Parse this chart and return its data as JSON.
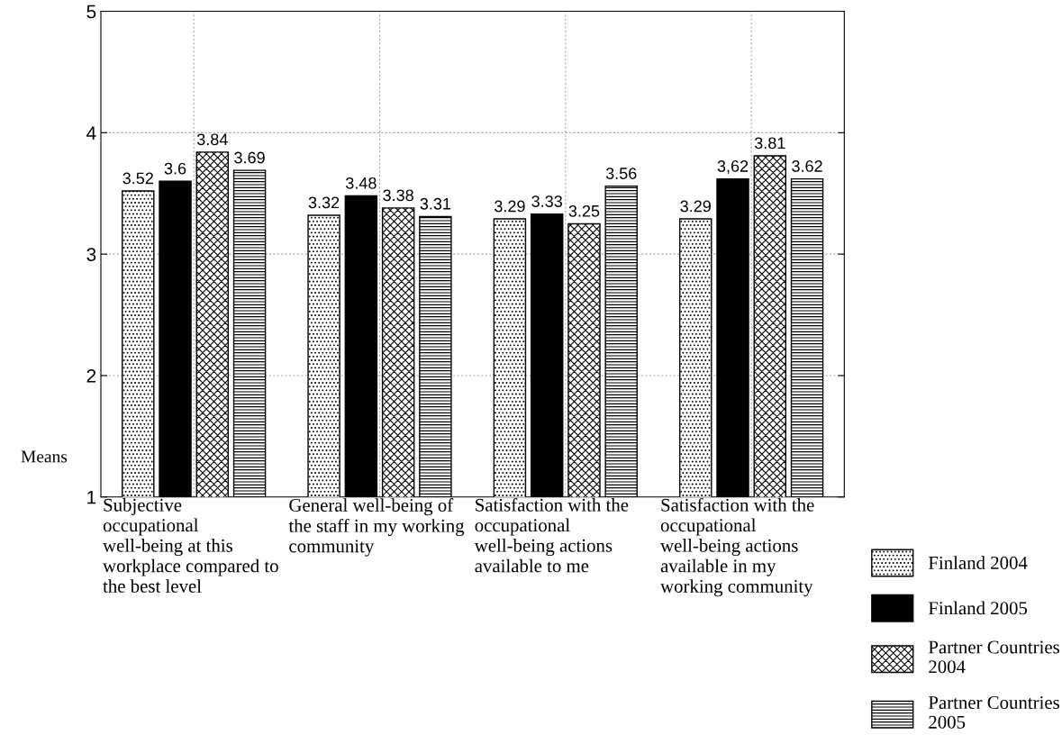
{
  "chart_data": {
    "type": "bar",
    "ylabel": "Means",
    "categories": [
      "Subjective occupational well-being at this workplace compared to the best level",
      "General well-being of the staff in my working community",
      "Satisfaction with the occupational well-being actions available to me",
      "Satisfaction with the occupational well-being actions available in my working community"
    ],
    "series": [
      {
        "name": "Finland 2004",
        "color": "#000000",
        "values": [
          3.52,
          3.32,
          3.29,
          3.29
        ]
      },
      {
        "name": "Finland 2005",
        "color": "#000000",
        "values": [
          3.6,
          3.48,
          3.33,
          3.62
        ]
      },
      {
        "name": "Partner Countries 2004",
        "color": "#000000",
        "values": [
          3.84,
          3.38,
          3.25,
          3.81
        ]
      },
      {
        "name": "Partner Countries 2005",
        "color": "#000000",
        "values": [
          3.69,
          3.31,
          3.56,
          3.62
        ]
      }
    ],
    "value_labels": [
      [
        "3.52",
        "3.32",
        "3.29",
        "3.29"
      ],
      [
        "3.6",
        "3.48",
        "3.33",
        "3,62"
      ],
      [
        "3.84",
        "3.38",
        "3.25",
        "3.81"
      ],
      [
        "3.69",
        "3.31",
        "3.56",
        "3.62"
      ]
    ],
    "ylim": [
      1,
      5
    ],
    "yticks": [
      1,
      2,
      3,
      4,
      5
    ],
    "grid": true,
    "legend": "bottom right"
  }
}
